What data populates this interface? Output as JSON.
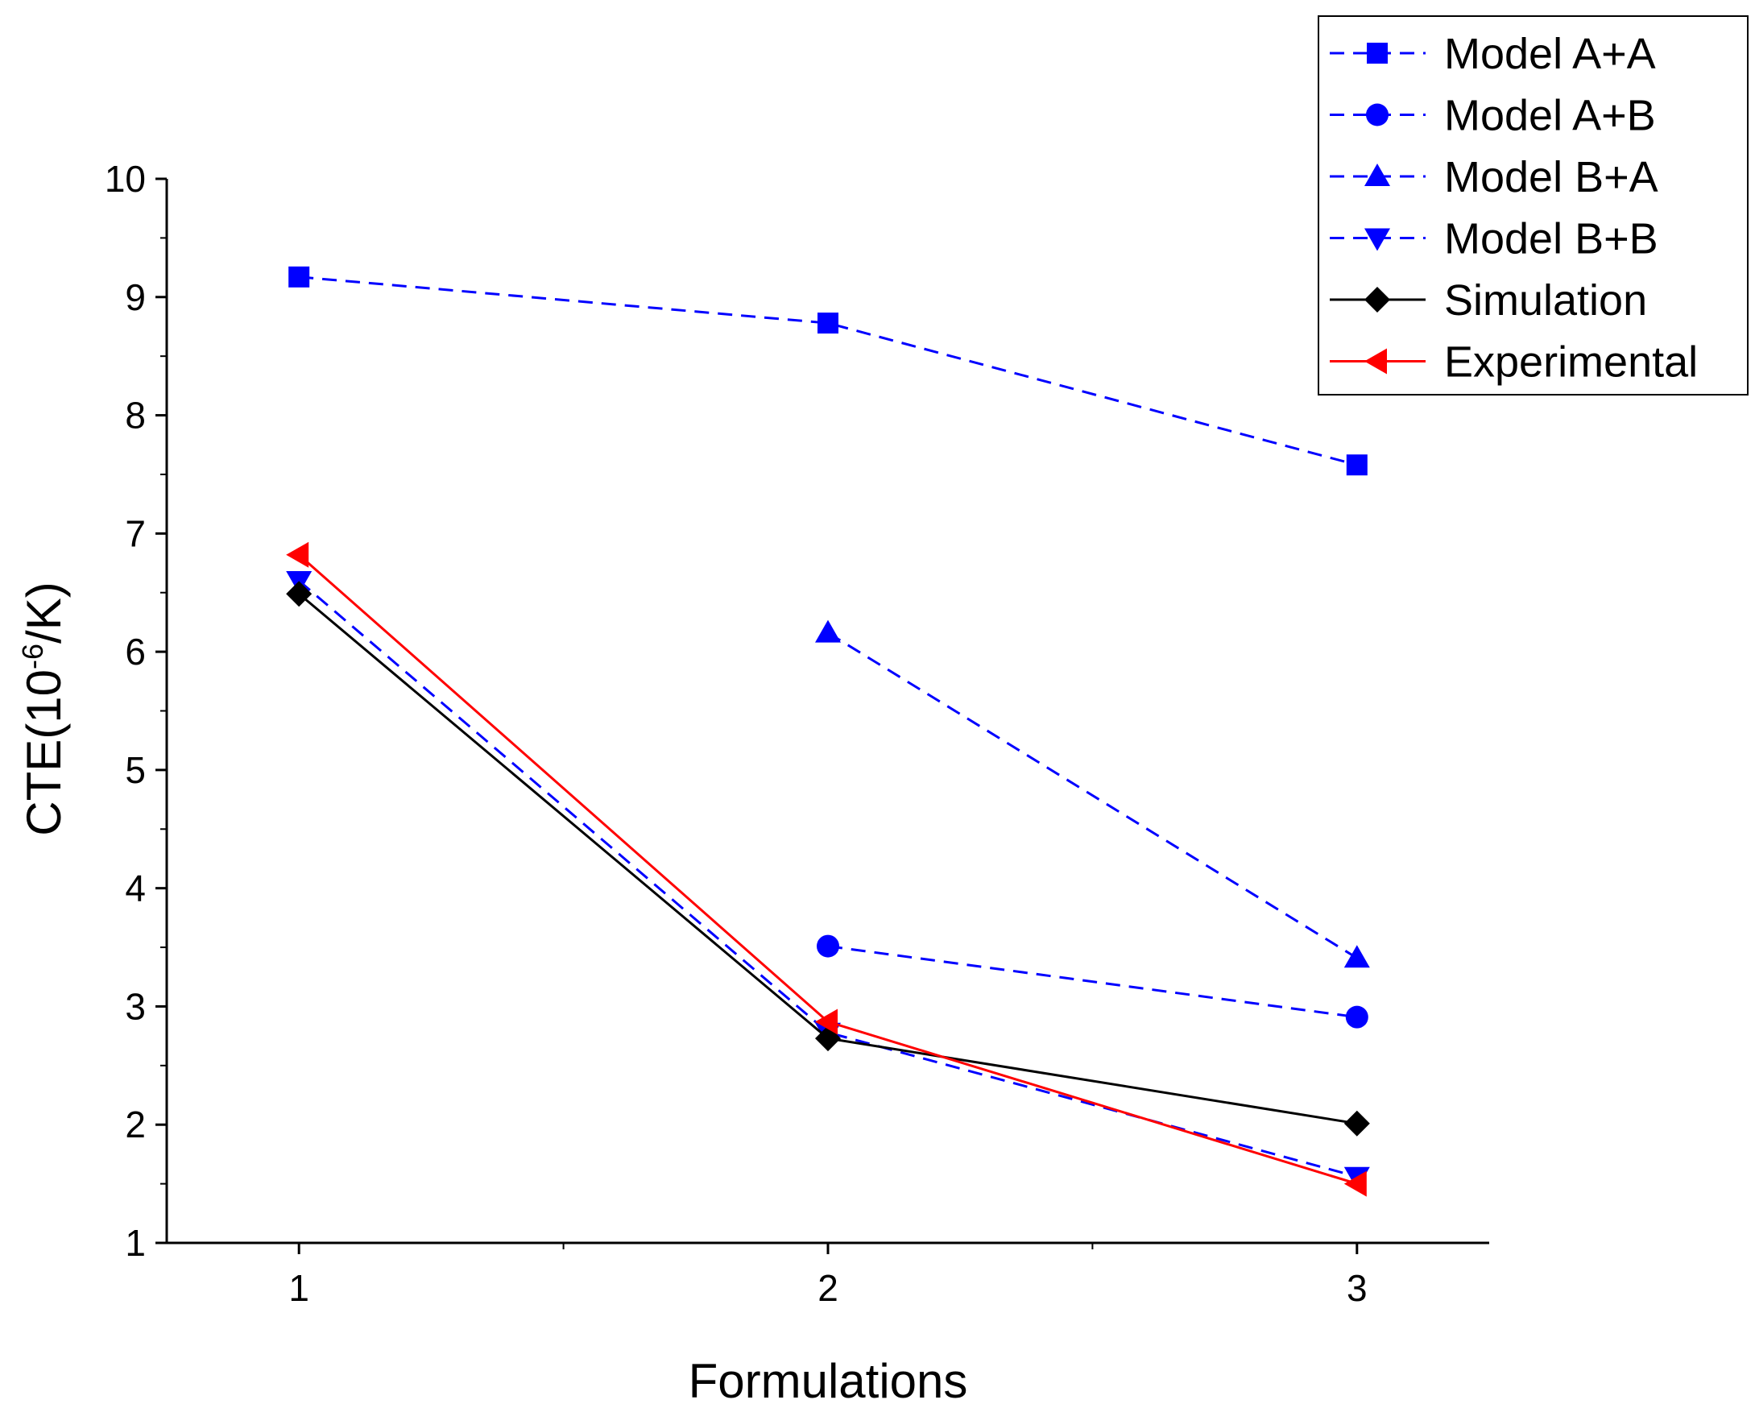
{
  "chart_data": {
    "type": "line",
    "xlabel": "Formulations",
    "ylabel": {
      "prefix": "CTE(10",
      "sup": "-6",
      "suffix": "/K)"
    },
    "x": [
      1,
      2,
      3
    ],
    "xticks": [
      "1",
      "2",
      "3"
    ],
    "xlim": [
      0.75,
      3.25
    ],
    "ylim": [
      1,
      10
    ],
    "yticks": [
      "1",
      "2",
      "3",
      "4",
      "5",
      "6",
      "7",
      "8",
      "9",
      "10"
    ],
    "grid": false,
    "legend_position": "top-right",
    "series": [
      {
        "name": "Model A+A",
        "x": [
          1,
          2,
          3
        ],
        "values": [
          9.17,
          8.78,
          7.58
        ],
        "color": "#0000ff",
        "dash": true,
        "marker": "square"
      },
      {
        "name": "Model A+B",
        "x": [
          2,
          3
        ],
        "values": [
          3.51,
          2.91
        ],
        "color": "#0000ff",
        "dash": true,
        "marker": "circle"
      },
      {
        "name": "Model B+A",
        "x": [
          2,
          3
        ],
        "values": [
          6.16,
          3.41
        ],
        "color": "#0000ff",
        "dash": true,
        "marker": "triangle-up"
      },
      {
        "name": "Model B+B",
        "x": [
          1,
          2,
          3
        ],
        "values": [
          6.6,
          2.78,
          1.56
        ],
        "color": "#0000ff",
        "dash": true,
        "marker": "triangle-down"
      },
      {
        "name": "Simulation",
        "x": [
          1,
          2,
          3
        ],
        "values": [
          6.49,
          2.73,
          2.01
        ],
        "color": "#000000",
        "dash": false,
        "marker": "diamond"
      },
      {
        "name": "Experimental",
        "x": [
          1,
          2,
          3
        ],
        "values": [
          6.82,
          2.87,
          1.5
        ],
        "color": "#ff0000",
        "dash": false,
        "marker": "triangle-left"
      }
    ]
  }
}
